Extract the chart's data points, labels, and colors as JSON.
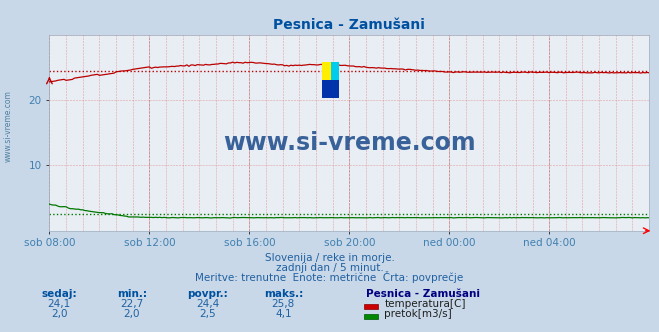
{
  "title": "Pesnica - Zamušani",
  "bg_color": "#c8d8e8",
  "plot_bg_color": "#e8eef4",
  "title_color": "#0050a0",
  "xlabel_color": "#4080b0",
  "ylim": [
    0,
    30
  ],
  "yticks": [
    10,
    20
  ],
  "x_labels": [
    "sob 08:00",
    "sob 12:00",
    "sob 16:00",
    "sob 20:00",
    "ned 00:00",
    "ned 04:00"
  ],
  "x_positions": [
    0,
    48,
    96,
    144,
    192,
    240
  ],
  "total_points": 289,
  "temp_color": "#bb0000",
  "flow_color": "#007700",
  "avg_temp": 24.4,
  "avg_flow": 2.5,
  "watermark": "www.si-vreme.com",
  "watermark_color": "#1a4a8a",
  "subtitle1": "Slovenija / reke in morje.",
  "subtitle2": "zadnji dan / 5 minut.",
  "subtitle3": "Meritve: trenutne  Enote: metrične  Črta: povprečje",
  "legend_title": "Pesnica - Zamušani",
  "legend_temp": "temperatura[C]",
  "legend_flow": "pretok[m3/s]",
  "table_headers": [
    "sedaj:",
    "min.:",
    "povpr.:",
    "maks.:"
  ],
  "table_temp": [
    "24,1",
    "22,7",
    "24,4",
    "25,8"
  ],
  "table_flow": [
    "2,0",
    "2,0",
    "2,5",
    "4,1"
  ],
  "sidebar_text": "www.si-vreme.com"
}
